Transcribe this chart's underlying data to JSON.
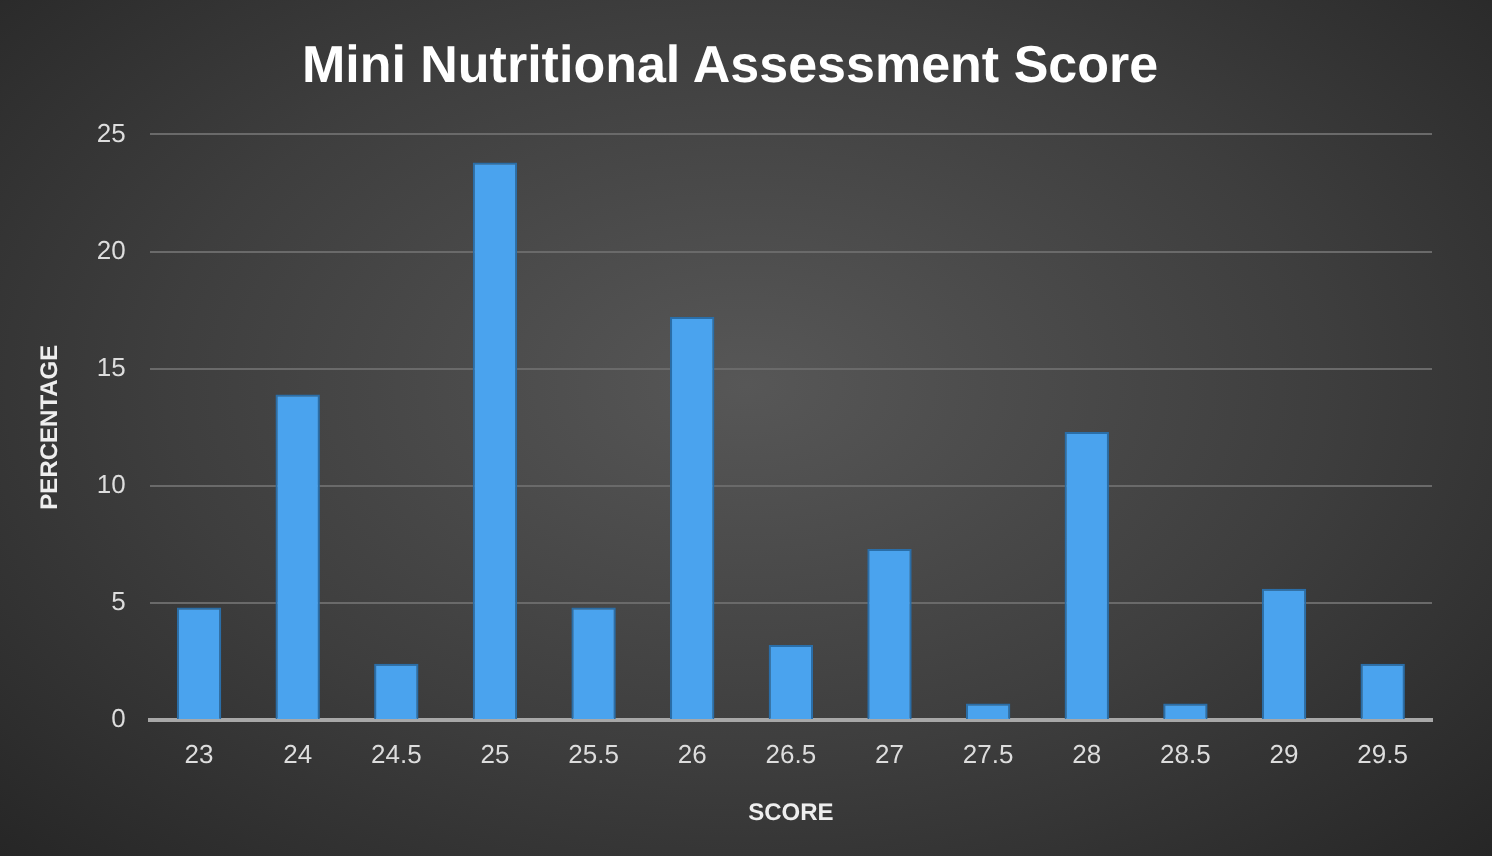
{
  "chart_data": {
    "type": "bar",
    "title": "Mini Nutritional Assessment Score",
    "xlabel": "SCORE",
    "ylabel": "PERCENTAGE",
    "categories": [
      "23",
      "24",
      "24.5",
      "25",
      "25.5",
      "26",
      "26.5",
      "27",
      "27.5",
      "28",
      "28.5",
      "29",
      "29.5"
    ],
    "values": [
      4.8,
      13.9,
      2.4,
      23.8,
      4.8,
      17.2,
      3.2,
      7.3,
      0.7,
      12.3,
      0.7,
      5.6,
      2.4
    ],
    "color": "#4aa3ee",
    "ylim": [
      0,
      25
    ],
    "yticks": [
      0,
      5,
      10,
      15,
      20,
      25
    ],
    "grid": "y"
  }
}
